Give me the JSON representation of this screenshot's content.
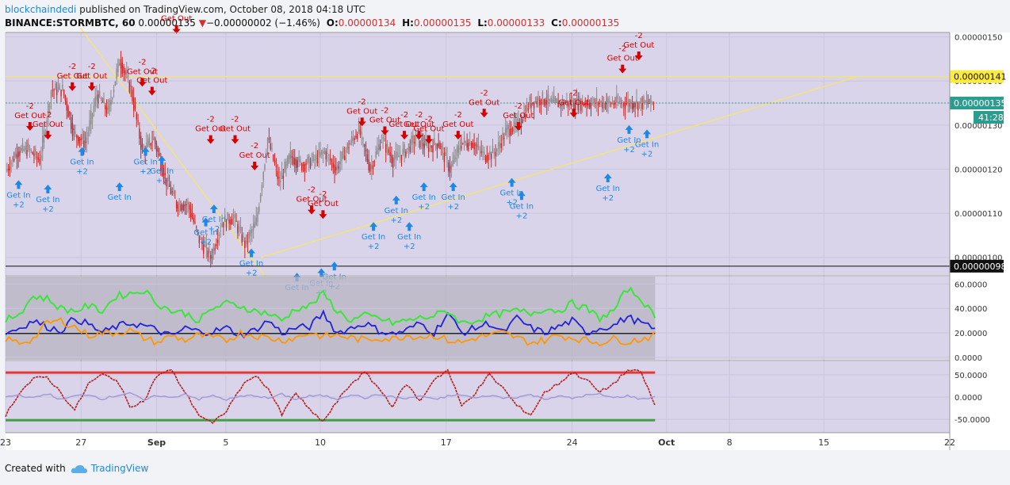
{
  "header": {
    "author": "blockchaindedi",
    "published": "published on TradingView.com, October 08, 2018 04:18 UTC",
    "symbol": "BINANCE:STORMBTC, 60",
    "price": "0.00000135",
    "change_arrow": "▼",
    "change": "−0.00000002 (−1.46%)",
    "o_label": "O:",
    "o_value": "0.00000134",
    "h_label": "H:",
    "h_value": "0.00000135",
    "l_label": "L:",
    "l_value": "0.00000133",
    "c_label": "C:",
    "c_value": "0.00000135"
  },
  "footer": {
    "created_with": "Created with",
    "brand": "TradingView",
    "brand_icon": "cloud-icon"
  },
  "colors": {
    "background": "#d9d4e9",
    "gridline": "#cbc5de",
    "candle_up": "#8a8a8a",
    "candle_down": "#c62828",
    "sell": "#d50000",
    "buy": "#1e88e5",
    "trendline": "#f5e66b",
    "line_blue": "#2222dd",
    "line_orange": "#ff9800",
    "line_green": "#39e639",
    "line_magenta": "#ff33cc",
    "osc_red": "#b71c1c",
    "osc_lavender": "#9e97d8"
  },
  "chart_data": [
    {
      "type": "candlestick",
      "panel": "price",
      "x_tick_labels": [
        "23",
        "27",
        "Sep",
        "5",
        "10",
        "17",
        "24",
        "Oct",
        "8",
        "15",
        "22"
      ],
      "y_tick_labels": [
        "0.00000150",
        "0.00000140",
        "0.00000130",
        "0.00000120",
        "0.00000110",
        "0.00000100"
      ],
      "ylim": [
        9.6e-07,
        1.51e-06
      ],
      "price_labels": [
        {
          "value": 1.41e-06,
          "text": "0.00000141",
          "style": "yellow"
        },
        {
          "value": 1.35e-06,
          "text": "0.00000135",
          "style": "teal"
        },
        {
          "value": 9.8e-07,
          "text": "0.00000098",
          "style": "black"
        }
      ],
      "countdown": "41:28",
      "horizontal_line": 1.41e-06,
      "trendlines": [
        {
          "from": [
            4.6,
            1.52e-06
          ],
          "to": [
            16.1,
            9.5e-07
          ]
        },
        {
          "from": [
            15.7,
            1e-06
          ],
          "to": [
            52.3,
            1.41e-06
          ]
        }
      ],
      "x": [
        0,
        0.7,
        1.4,
        2.1,
        2.8,
        3.5,
        4.2,
        4.9,
        5.6,
        6.3,
        7.0,
        7.7,
        8.4,
        9.1,
        9.8,
        10.5,
        11.2,
        11.9,
        12.6,
        13.3,
        14.0,
        14.7,
        15.4,
        16.1,
        16.8,
        17.5,
        18.2,
        18.9,
        19.6,
        20.3,
        21.0,
        21.7,
        22.4,
        23.1,
        23.8,
        24.5,
        25.2,
        25.9,
        26.6,
        27.3,
        28.0,
        28.7,
        29.4,
        30.1,
        30.8,
        31.5,
        32.2,
        32.9,
        33.6,
        34.3,
        35.0,
        35.7,
        36.4,
        37.1,
        37.8,
        38.5,
        39.2,
        39.9
      ],
      "close": [
        1.195e-06,
        1.24e-06,
        1.245e-06,
        1.22e-06,
        1.38e-06,
        1.38e-06,
        1.28e-06,
        1.26e-06,
        1.37e-06,
        1.33e-06,
        1.45e-06,
        1.38e-06,
        1.24e-06,
        1.27e-06,
        1.18e-06,
        1.12e-06,
        1.12e-06,
        1.04e-06,
        1e-06,
        1.08e-06,
        1.09e-06,
        1.03e-06,
        1.08e-06,
        1.27e-06,
        1.17e-06,
        1.23e-06,
        1.21e-06,
        1.22e-06,
        1.24e-06,
        1.2e-06,
        1.25e-06,
        1.29e-06,
        1.2e-06,
        1.27e-06,
        1.22e-06,
        1.24e-06,
        1.27e-06,
        1.25e-06,
        1.26e-06,
        1.2e-06,
        1.26e-06,
        1.26e-06,
        1.23e-06,
        1.24e-06,
        1.29e-06,
        1.3e-06,
        1.35e-06,
        1.36e-06,
        1.35e-06,
        1.35e-06,
        1.35e-06,
        1.35e-06,
        1.35e-06,
        1.35e-06,
        1.35e-06,
        1.35e-06,
        1.35e-06,
        1.35e-06
      ],
      "signals": [
        {
          "kind": "sell",
          "x": 1.5,
          "y": 1.28e-06,
          "label": "Get Out",
          "qty": "-2"
        },
        {
          "kind": "sell",
          "x": 2.6,
          "y": 1.26e-06,
          "label": "Get Out",
          "qty": "-2"
        },
        {
          "kind": "buy",
          "x": 0.8,
          "y": 1.175e-06,
          "label": "Get In",
          "qty": "+2"
        },
        {
          "kind": "buy",
          "x": 2.6,
          "y": 1.165e-06,
          "label": "Get In",
          "qty": "+2"
        },
        {
          "kind": "sell",
          "x": 4.1,
          "y": 1.37e-06,
          "label": "Get Out",
          "qty": "-2"
        },
        {
          "kind": "sell",
          "x": 5.3,
          "y": 1.37e-06,
          "label": "Get Out",
          "qty": "-2"
        },
        {
          "kind": "buy",
          "x": 4.7,
          "y": 1.25e-06,
          "label": "Get In",
          "qty": "+2"
        },
        {
          "kind": "buy",
          "x": 7.0,
          "y": 1.17e-06,
          "label": "Get In",
          "qty": ""
        },
        {
          "kind": "sell",
          "x": 8.4,
          "y": 1.38e-06,
          "label": "Get Out",
          "qty": "-2"
        },
        {
          "kind": "sell",
          "x": 9.0,
          "y": 1.36e-06,
          "label": "Get Out",
          "qty": "-2"
        },
        {
          "kind": "buy",
          "x": 8.6,
          "y": 1.25e-06,
          "label": "Get In",
          "qty": "+2"
        },
        {
          "kind": "buy",
          "x": 9.6,
          "y": 1.23e-06,
          "label": "Get In",
          "qty": "+2"
        },
        {
          "kind": "sell",
          "x": 10.5,
          "y": 1.5e-06,
          "label": "Get Out",
          "qty": ""
        },
        {
          "kind": "sell",
          "x": 12.6,
          "y": 1.25e-06,
          "label": "Get Out",
          "qty": "-2"
        },
        {
          "kind": "sell",
          "x": 14.1,
          "y": 1.25e-06,
          "label": "Get Out",
          "qty": "-2"
        },
        {
          "kind": "buy",
          "x": 12.3,
          "y": 1.09e-06,
          "label": "Get In",
          "qty": "+2"
        },
        {
          "kind": "buy",
          "x": 12.8,
          "y": 1.12e-06,
          "label": "Get In",
          "qty": "+2"
        },
        {
          "kind": "sell",
          "x": 15.3,
          "y": 1.19e-06,
          "label": "Get Out",
          "qty": "-2"
        },
        {
          "kind": "buy",
          "x": 15.1,
          "y": 1.02e-06,
          "label": "Get In",
          "qty": "+2"
        },
        {
          "kind": "sell",
          "x": 18.8,
          "y": 1.09e-06,
          "label": "Get Out",
          "qty": "-2"
        },
        {
          "kind": "sell",
          "x": 19.5,
          "y": 1.08e-06,
          "label": "Get Out",
          "qty": "-2"
        },
        {
          "kind": "buy",
          "x": 17.9,
          "y": 9.65e-07,
          "label": "Get In",
          "qty": ""
        },
        {
          "kind": "buy",
          "x": 19.4,
          "y": 9.75e-07,
          "label": "Get In",
          "qty": "+2"
        },
        {
          "kind": "buy",
          "x": 20.2,
          "y": 9.9e-07,
          "label": "Get In",
          "qty": "+2"
        },
        {
          "kind": "sell",
          "x": 21.9,
          "y": 1.29e-06,
          "label": "Get Out",
          "qty": "-2"
        },
        {
          "kind": "buy",
          "x": 22.6,
          "y": 1.08e-06,
          "label": "Get In",
          "qty": "+2"
        },
        {
          "kind": "sell",
          "x": 23.3,
          "y": 1.27e-06,
          "label": "Get Out",
          "qty": "-2"
        },
        {
          "kind": "sell",
          "x": 24.5,
          "y": 1.26e-06,
          "label": "Get Out",
          "qty": "-2"
        },
        {
          "kind": "buy",
          "x": 24.0,
          "y": 1.14e-06,
          "label": "Get In",
          "qty": "+2"
        },
        {
          "kind": "buy",
          "x": 24.8,
          "y": 1.08e-06,
          "label": "Get In",
          "qty": "+2"
        },
        {
          "kind": "sell",
          "x": 25.4,
          "y": 1.26e-06,
          "label": "Get Out",
          "qty": "-2"
        },
        {
          "kind": "sell",
          "x": 26.0,
          "y": 1.25e-06,
          "label": "Get Out",
          "qty": "-2"
        },
        {
          "kind": "buy",
          "x": 25.7,
          "y": 1.17e-06,
          "label": "Get In",
          "qty": "+2"
        },
        {
          "kind": "sell",
          "x": 27.8,
          "y": 1.26e-06,
          "label": "Get Out",
          "qty": "-2"
        },
        {
          "kind": "buy",
          "x": 27.5,
          "y": 1.17e-06,
          "label": "Get In",
          "qty": "+2"
        },
        {
          "kind": "sell",
          "x": 29.4,
          "y": 1.31e-06,
          "label": "Get Out",
          "qty": "-2"
        },
        {
          "kind": "sell",
          "x": 31.5,
          "y": 1.28e-06,
          "label": "Get Out",
          "qty": "-2"
        },
        {
          "kind": "buy",
          "x": 31.1,
          "y": 1.18e-06,
          "label": "Get In",
          "qty": "+2"
        },
        {
          "kind": "buy",
          "x": 31.7,
          "y": 1.15e-06,
          "label": "Get In",
          "qty": "+2"
        },
        {
          "kind": "sell",
          "x": 34.9,
          "y": 1.31e-06,
          "label": "Get Out",
          "qty": "-2"
        },
        {
          "kind": "buy",
          "x": 37.0,
          "y": 1.19e-06,
          "label": "Get In",
          "qty": "+2"
        },
        {
          "kind": "sell",
          "x": 37.9,
          "y": 1.41e-06,
          "label": "Get Out",
          "qty": "-2"
        },
        {
          "kind": "sell",
          "x": 38.9,
          "y": 1.44e-06,
          "label": "Get Out",
          "qty": "-2"
        },
        {
          "kind": "buy",
          "x": 38.3,
          "y": 1.3e-06,
          "label": "Get In",
          "qty": "+2"
        },
        {
          "kind": "buy",
          "x": 39.4,
          "y": 1.29e-06,
          "label": "Get In",
          "qty": "+2"
        }
      ]
    },
    {
      "type": "line",
      "panel": "indicator-1",
      "y_tick_labels": [
        "60.0000",
        "40.0000",
        "20.0000",
        "0.0000"
      ],
      "ylim": [
        -2,
        66
      ],
      "horizontal_line": 19.5,
      "series": [
        {
          "color": "#2222dd",
          "values": [
            20,
            24,
            30,
            25,
            22,
            32,
            27,
            20,
            25,
            28,
            26,
            22,
            17,
            24,
            21,
            21,
            24,
            18,
            22,
            30,
            20,
            24,
            25,
            36,
            20,
            24,
            28,
            22,
            19,
            22,
            28,
            20,
            36,
            20,
            24,
            28,
            20,
            32,
            24,
            20,
            25,
            30,
            20,
            24,
            26,
            33,
            28,
            22
          ]
        },
        {
          "color": "#ff9800",
          "values": [
            15,
            12,
            15,
            28,
            30,
            25,
            18,
            20,
            20,
            22,
            16,
            12,
            18,
            14,
            18,
            16,
            14,
            20,
            18,
            16,
            14,
            16,
            20,
            17,
            18,
            16,
            14,
            16,
            15,
            18,
            17,
            18,
            14,
            12,
            16,
            18,
            20,
            16,
            12,
            14,
            18,
            16,
            14,
            12,
            15,
            13,
            15,
            18
          ]
        },
        {
          "color": "#39e639",
          "values": [
            30,
            36,
            50,
            48,
            40,
            38,
            42,
            38,
            50,
            52,
            55,
            44,
            38,
            36,
            30,
            40,
            44,
            42,
            38,
            36,
            30,
            40,
            42,
            52,
            38,
            30,
            34,
            32,
            28,
            30,
            32,
            34,
            38,
            28,
            30,
            34,
            36,
            38,
            36,
            40,
            38,
            44,
            40,
            32,
            38,
            56,
            48,
            32
          ]
        }
      ]
    },
    {
      "type": "line",
      "panel": "indicator-2",
      "y_tick_labels": [
        "50.0000",
        "0.0000",
        "-50.0000"
      ],
      "ylim": [
        -80,
        80
      ],
      "upper_band": 55,
      "lower_band": -52,
      "series": [
        {
          "color": "#b71c1c",
          "values": [
            -40,
            10,
            40,
            45,
            10,
            -30,
            30,
            50,
            40,
            -20,
            -10,
            50,
            60,
            10,
            -40,
            -60,
            -30,
            20,
            50,
            20,
            -40,
            10,
            -30,
            -55,
            -10,
            30,
            55,
            20,
            -20,
            30,
            -10,
            40,
            60,
            -20,
            10,
            50,
            20,
            -20,
            -40,
            10,
            30,
            55,
            40,
            10,
            30,
            60,
            55,
            -20
          ]
        },
        {
          "color": "#9e97d8",
          "values": [
            0,
            5,
            -3,
            8,
            -6,
            2,
            6,
            -4,
            3,
            10,
            -8,
            4,
            -2,
            7,
            -5,
            3,
            -6,
            1,
            4,
            -3,
            6,
            -5,
            2,
            3,
            -4,
            6,
            -2,
            5,
            0,
            -4,
            3,
            -6,
            2,
            5,
            -3,
            4,
            -2,
            0,
            5,
            -4,
            2,
            -3,
            4,
            6,
            -2,
            3,
            -5,
            1
          ]
        }
      ]
    }
  ]
}
